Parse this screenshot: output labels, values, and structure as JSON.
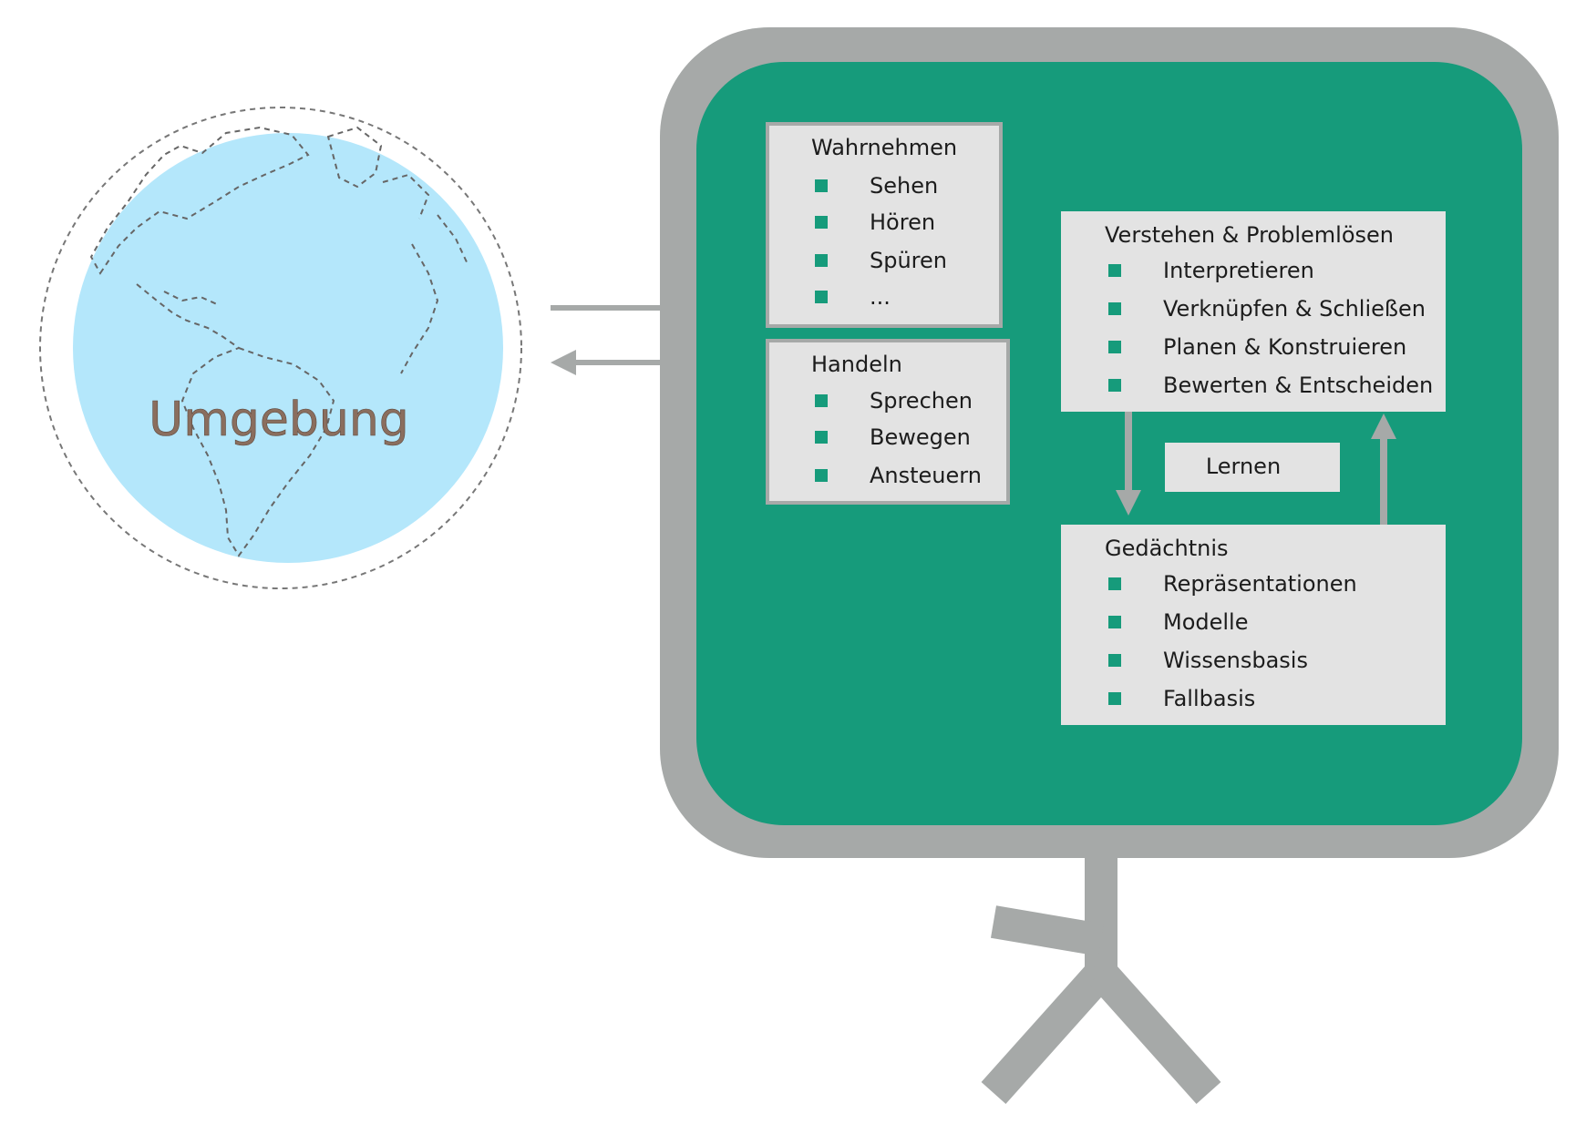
{
  "environment": {
    "label": "Umgebung"
  },
  "agent": {
    "perceive": {
      "title": "Wahrnehmen",
      "items": [
        "Sehen",
        "Hören",
        "Spüren",
        "..."
      ]
    },
    "act": {
      "title": "Handeln",
      "items": [
        "Sprechen",
        "Bewegen",
        "Ansteuern"
      ]
    },
    "understand": {
      "title": "Verstehen & Problemlösen",
      "items": [
        "Interpretieren",
        "Verknüpfen & Schließen",
        "Planen & Konstruieren",
        "Bewerten & Entscheiden"
      ]
    },
    "learn": {
      "label": "Lernen"
    },
    "memory": {
      "title": "Gedächtnis",
      "items": [
        "Repräsentationen",
        "Modelle",
        "Wissensbasis",
        "Fallbasis"
      ]
    }
  },
  "colors": {
    "globe_fill": "#b4e7fb",
    "board_frame": "#a6a9a8",
    "board_fill": "#169b7b",
    "box_fill": "#e3e3e3",
    "bullet": "#169b7b",
    "arrow": "#a6a9a8"
  }
}
